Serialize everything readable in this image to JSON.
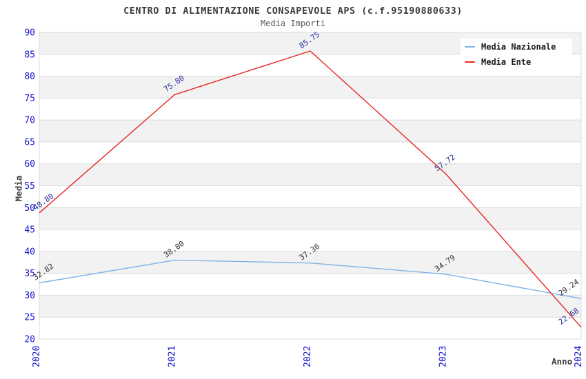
{
  "title": "CENTRO DI ALIMENTAZIONE CONSAPEVOLE APS (c.f.95190880633)",
  "subtitle": "Media Importi",
  "chart_data": {
    "type": "line",
    "x": [
      "2020",
      "2021",
      "2022",
      "2023",
      "2024"
    ],
    "series": [
      {
        "name": "Media Nazionale",
        "values": [
          32.82,
          38.0,
          37.36,
          34.79,
          29.24
        ],
        "color": "#7fb2e5",
        "label_color": "#333333"
      },
      {
        "name": "Media Ente",
        "values": [
          48.8,
          75.8,
          85.75,
          57.72,
          22.68
        ],
        "color": "#e62421",
        "label_color": "#28309b"
      }
    ],
    "xlabel": "Anno",
    "ylabel": "Media",
    "ylim": [
      20,
      90
    ],
    "ytick_step": 5,
    "grid": "horizontal-bands",
    "legend_position": "top-right",
    "band_colors": [
      "#f2f2f2",
      "#ffffff"
    ],
    "gridline_color": "#dbdbdb",
    "tick_label_color": "#1414cc",
    "axis_label_color": "#3c3c3c"
  }
}
